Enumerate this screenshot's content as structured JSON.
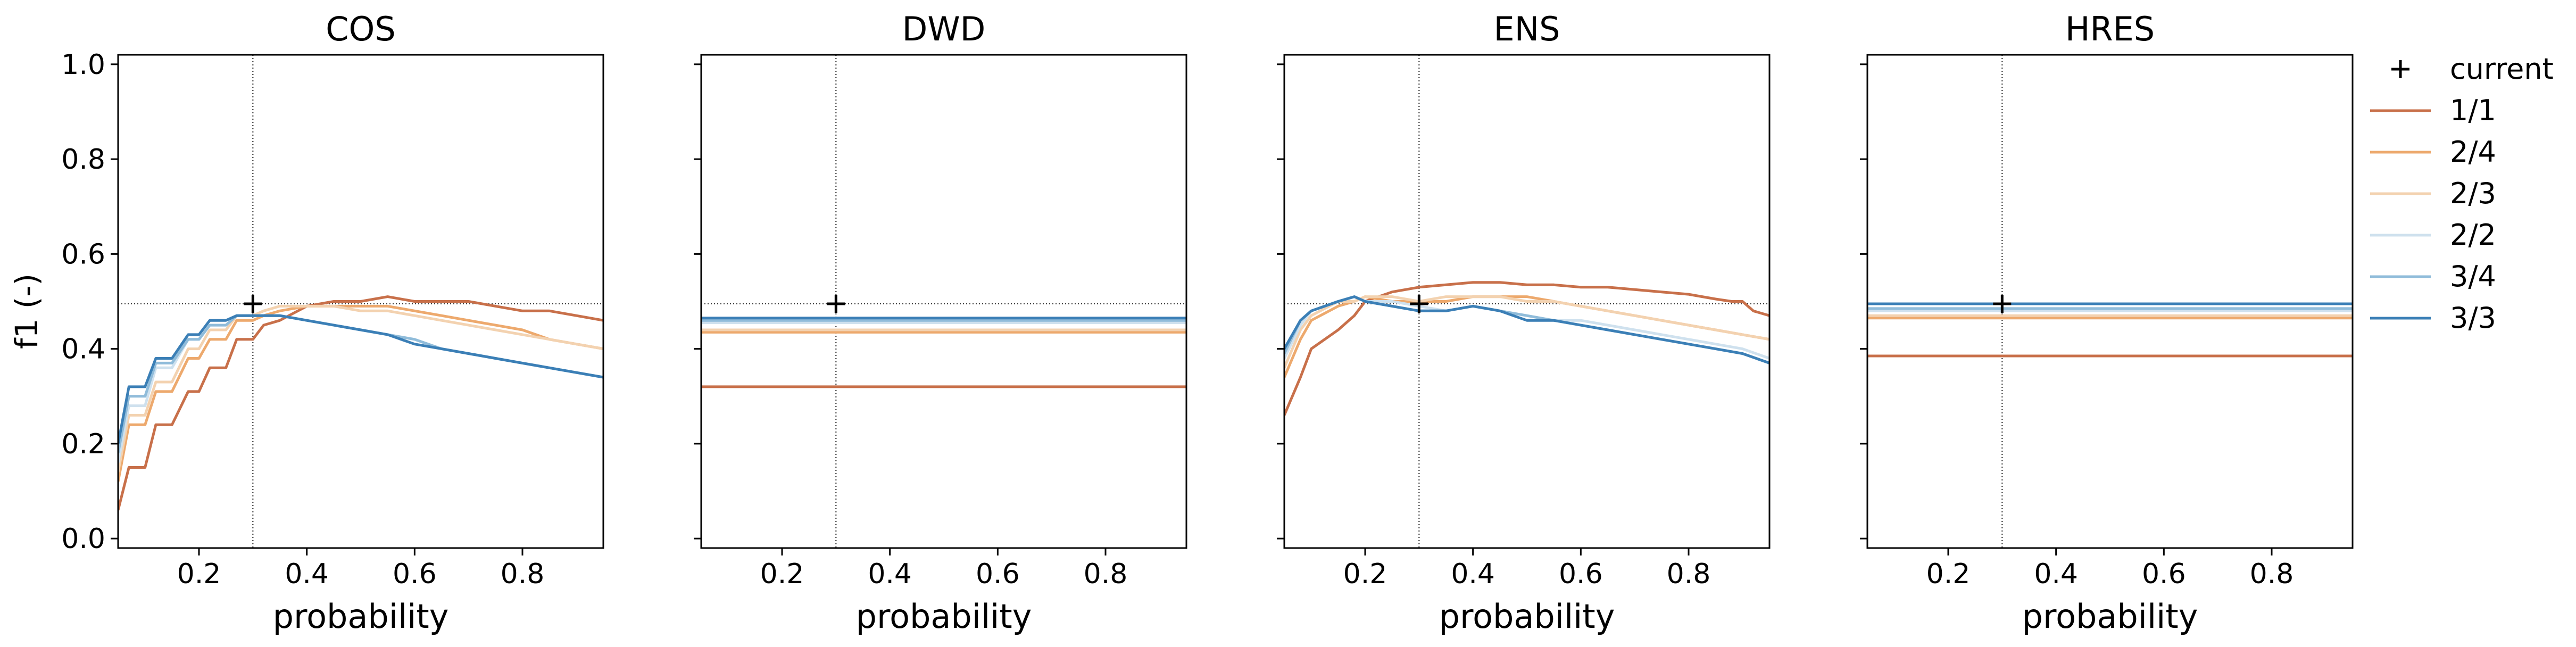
{
  "chart_data": {
    "type": "line",
    "ylabel": "f1 (-)",
    "ylim": [
      -0.02,
      1.02
    ],
    "yticks": [
      0.0,
      0.2,
      0.4,
      0.6,
      0.8,
      1.0
    ],
    "yticklabels": [
      "0.0",
      "0.2",
      "0.4",
      "0.6",
      "0.8",
      "1.0"
    ],
    "xlim": [
      0.05,
      0.95
    ],
    "xticks": [
      0.2,
      0.4,
      0.6,
      0.8
    ],
    "xticklabels": [
      "0.2",
      "0.4",
      "0.6",
      "0.8"
    ],
    "legend_placement": "outside-right",
    "reference": {
      "name": "current",
      "x": 0.3,
      "y": 0.495
    },
    "series_meta": [
      {
        "name": "1/1",
        "color": "#c8704a"
      },
      {
        "name": "2/4",
        "color": "#eda96d"
      },
      {
        "name": "2/3",
        "color": "#f3d2b0"
      },
      {
        "name": "2/2",
        "color": "#cfe1ee"
      },
      {
        "name": "3/4",
        "color": "#90bcda"
      },
      {
        "name": "3/3",
        "color": "#3b7fb6"
      }
    ],
    "panels": [
      {
        "title": "COS",
        "xlabel": "probability",
        "series": [
          {
            "name": "1/1",
            "x": [
              0.05,
              0.07,
              0.1,
              0.12,
              0.15,
              0.18,
              0.2,
              0.22,
              0.25,
              0.27,
              0.3,
              0.32,
              0.35,
              0.4,
              0.45,
              0.5,
              0.55,
              0.6,
              0.65,
              0.7,
              0.75,
              0.8,
              0.85,
              0.9,
              0.95
            ],
            "y": [
              0.06,
              0.15,
              0.15,
              0.24,
              0.24,
              0.31,
              0.31,
              0.36,
              0.36,
              0.42,
              0.42,
              0.45,
              0.46,
              0.49,
              0.5,
              0.5,
              0.51,
              0.5,
              0.5,
              0.5,
              0.49,
              0.48,
              0.48,
              0.47,
              0.46
            ]
          },
          {
            "name": "2/4",
            "x": [
              0.05,
              0.07,
              0.1,
              0.12,
              0.15,
              0.18,
              0.2,
              0.22,
              0.25,
              0.27,
              0.3,
              0.32,
              0.35,
              0.4,
              0.45,
              0.5,
              0.55,
              0.6,
              0.65,
              0.7,
              0.75,
              0.8,
              0.85,
              0.9,
              0.95
            ],
            "y": [
              0.12,
              0.24,
              0.24,
              0.31,
              0.31,
              0.38,
              0.38,
              0.42,
              0.42,
              0.46,
              0.46,
              0.47,
              0.48,
              0.49,
              0.49,
              0.49,
              0.49,
              0.48,
              0.47,
              0.46,
              0.45,
              0.44,
              0.42,
              0.41,
              0.4
            ]
          },
          {
            "name": "2/3",
            "x": [
              0.05,
              0.07,
              0.1,
              0.12,
              0.15,
              0.18,
              0.2,
              0.22,
              0.25,
              0.27,
              0.3,
              0.32,
              0.35,
              0.4,
              0.45,
              0.5,
              0.55,
              0.6,
              0.65,
              0.7,
              0.75,
              0.8,
              0.85,
              0.9,
              0.95
            ],
            "y": [
              0.14,
              0.26,
              0.26,
              0.33,
              0.33,
              0.4,
              0.4,
              0.44,
              0.44,
              0.47,
              0.47,
              0.48,
              0.49,
              0.49,
              0.49,
              0.48,
              0.48,
              0.47,
              0.46,
              0.45,
              0.44,
              0.43,
              0.42,
              0.41,
              0.4
            ]
          },
          {
            "name": "2/2",
            "x": [
              0.05,
              0.07,
              0.1,
              0.12,
              0.15,
              0.18,
              0.2,
              0.22,
              0.25,
              0.27,
              0.3,
              0.32,
              0.35,
              0.4,
              0.45,
              0.5,
              0.55,
              0.6,
              0.65,
              0.7,
              0.75,
              0.8,
              0.85,
              0.9,
              0.95
            ],
            "y": [
              0.16,
              0.28,
              0.28,
              0.36,
              0.36,
              0.42,
              0.42,
              0.45,
              0.45,
              0.47,
              0.47,
              0.47,
              0.47,
              0.46,
              0.45,
              0.44,
              0.43,
              0.42,
              0.4,
              0.39,
              0.38,
              0.37,
              0.36,
              0.35,
              0.34
            ]
          },
          {
            "name": "3/4",
            "x": [
              0.05,
              0.07,
              0.1,
              0.12,
              0.15,
              0.18,
              0.2,
              0.22,
              0.25,
              0.27,
              0.3,
              0.32,
              0.35,
              0.4,
              0.45,
              0.5,
              0.55,
              0.6,
              0.65,
              0.7,
              0.75,
              0.8,
              0.85,
              0.9,
              0.95
            ],
            "y": [
              0.18,
              0.3,
              0.3,
              0.37,
              0.37,
              0.42,
              0.42,
              0.45,
              0.45,
              0.47,
              0.47,
              0.47,
              0.47,
              0.46,
              0.45,
              0.44,
              0.43,
              0.42,
              0.4,
              0.39,
              0.38,
              0.37,
              0.36,
              0.35,
              0.34
            ]
          },
          {
            "name": "3/3",
            "x": [
              0.05,
              0.07,
              0.1,
              0.12,
              0.15,
              0.18,
              0.2,
              0.22,
              0.25,
              0.27,
              0.3,
              0.32,
              0.35,
              0.4,
              0.45,
              0.5,
              0.55,
              0.6,
              0.65,
              0.7,
              0.75,
              0.8,
              0.85,
              0.9,
              0.95
            ],
            "y": [
              0.2,
              0.32,
              0.32,
              0.38,
              0.38,
              0.43,
              0.43,
              0.46,
              0.46,
              0.47,
              0.47,
              0.47,
              0.47,
              0.46,
              0.45,
              0.44,
              0.43,
              0.41,
              0.4,
              0.39,
              0.38,
              0.37,
              0.36,
              0.35,
              0.34
            ]
          }
        ]
      },
      {
        "title": "DWD",
        "xlabel": "probability",
        "series": [
          {
            "name": "1/1",
            "x": [
              0.05,
              0.95
            ],
            "y": [
              0.32,
              0.32
            ]
          },
          {
            "name": "2/4",
            "x": [
              0.05,
              0.95
            ],
            "y": [
              0.435,
              0.435
            ]
          },
          {
            "name": "2/3",
            "x": [
              0.05,
              0.95
            ],
            "y": [
              0.44,
              0.44
            ]
          },
          {
            "name": "2/2",
            "x": [
              0.05,
              0.95
            ],
            "y": [
              0.455,
              0.455
            ]
          },
          {
            "name": "3/4",
            "x": [
              0.05,
              0.95
            ],
            "y": [
              0.46,
              0.46
            ]
          },
          {
            "name": "3/3",
            "x": [
              0.05,
              0.95
            ],
            "y": [
              0.465,
              0.465
            ]
          }
        ]
      },
      {
        "title": "ENS",
        "xlabel": "probability",
        "series": [
          {
            "name": "1/1",
            "x": [
              0.05,
              0.08,
              0.1,
              0.15,
              0.18,
              0.2,
              0.25,
              0.3,
              0.35,
              0.4,
              0.45,
              0.5,
              0.55,
              0.6,
              0.65,
              0.7,
              0.75,
              0.8,
              0.85,
              0.88,
              0.9,
              0.92,
              0.95
            ],
            "y": [
              0.26,
              0.34,
              0.4,
              0.44,
              0.47,
              0.5,
              0.52,
              0.53,
              0.535,
              0.54,
              0.54,
              0.535,
              0.535,
              0.53,
              0.53,
              0.525,
              0.52,
              0.515,
              0.505,
              0.5,
              0.5,
              0.48,
              0.47
            ]
          },
          {
            "name": "2/4",
            "x": [
              0.05,
              0.08,
              0.1,
              0.15,
              0.18,
              0.2,
              0.25,
              0.3,
              0.35,
              0.4,
              0.45,
              0.5,
              0.55,
              0.6,
              0.65,
              0.7,
              0.75,
              0.8,
              0.85,
              0.9,
              0.95
            ],
            "y": [
              0.34,
              0.42,
              0.46,
              0.49,
              0.5,
              0.51,
              0.5,
              0.5,
              0.5,
              0.51,
              0.51,
              0.51,
              0.5,
              0.49,
              0.48,
              0.47,
              0.46,
              0.45,
              0.44,
              0.43,
              0.42
            ]
          },
          {
            "name": "2/3",
            "x": [
              0.05,
              0.08,
              0.1,
              0.15,
              0.18,
              0.2,
              0.25,
              0.3,
              0.35,
              0.4,
              0.45,
              0.5,
              0.55,
              0.6,
              0.65,
              0.7,
              0.75,
              0.8,
              0.85,
              0.9,
              0.95
            ],
            "y": [
              0.36,
              0.44,
              0.47,
              0.5,
              0.5,
              0.51,
              0.51,
              0.5,
              0.51,
              0.51,
              0.51,
              0.5,
              0.5,
              0.49,
              0.48,
              0.47,
              0.46,
              0.45,
              0.44,
              0.43,
              0.42
            ]
          },
          {
            "name": "2/2",
            "x": [
              0.05,
              0.08,
              0.1,
              0.15,
              0.18,
              0.2,
              0.25,
              0.3,
              0.35,
              0.4,
              0.45,
              0.5,
              0.55,
              0.6,
              0.65,
              0.7,
              0.75,
              0.8,
              0.85,
              0.9,
              0.95
            ],
            "y": [
              0.38,
              0.45,
              0.48,
              0.5,
              0.51,
              0.5,
              0.5,
              0.49,
              0.48,
              0.49,
              0.48,
              0.47,
              0.46,
              0.46,
              0.45,
              0.44,
              0.43,
              0.42,
              0.41,
              0.4,
              0.38
            ]
          },
          {
            "name": "3/4",
            "x": [
              0.05,
              0.08,
              0.1,
              0.15,
              0.18,
              0.2,
              0.25,
              0.3,
              0.35,
              0.4,
              0.45,
              0.5,
              0.55,
              0.6,
              0.65,
              0.7,
              0.75,
              0.8,
              0.85,
              0.9,
              0.95
            ],
            "y": [
              0.39,
              0.46,
              0.48,
              0.5,
              0.51,
              0.5,
              0.49,
              0.48,
              0.48,
              0.49,
              0.48,
              0.47,
              0.46,
              0.45,
              0.44,
              0.43,
              0.42,
              0.41,
              0.4,
              0.39,
              0.37
            ]
          },
          {
            "name": "3/3",
            "x": [
              0.05,
              0.08,
              0.1,
              0.15,
              0.18,
              0.2,
              0.25,
              0.3,
              0.35,
              0.4,
              0.45,
              0.5,
              0.55,
              0.6,
              0.65,
              0.7,
              0.75,
              0.8,
              0.85,
              0.9,
              0.95
            ],
            "y": [
              0.4,
              0.46,
              0.48,
              0.5,
              0.51,
              0.5,
              0.49,
              0.48,
              0.48,
              0.49,
              0.48,
              0.46,
              0.46,
              0.45,
              0.44,
              0.43,
              0.42,
              0.41,
              0.4,
              0.39,
              0.37
            ]
          }
        ]
      },
      {
        "title": "HRES",
        "xlabel": "probability",
        "series": [
          {
            "name": "1/1",
            "x": [
              0.05,
              0.95
            ],
            "y": [
              0.385,
              0.385
            ]
          },
          {
            "name": "2/4",
            "x": [
              0.05,
              0.95
            ],
            "y": [
              0.465,
              0.465
            ]
          },
          {
            "name": "2/3",
            "x": [
              0.05,
              0.95
            ],
            "y": [
              0.47,
              0.47
            ]
          },
          {
            "name": "2/2",
            "x": [
              0.05,
              0.95
            ],
            "y": [
              0.48,
              0.48
            ]
          },
          {
            "name": "3/4",
            "x": [
              0.05,
              0.95
            ],
            "y": [
              0.485,
              0.485
            ]
          },
          {
            "name": "3/3",
            "x": [
              0.05,
              0.95
            ],
            "y": [
              0.495,
              0.495
            ]
          }
        ]
      }
    ]
  }
}
